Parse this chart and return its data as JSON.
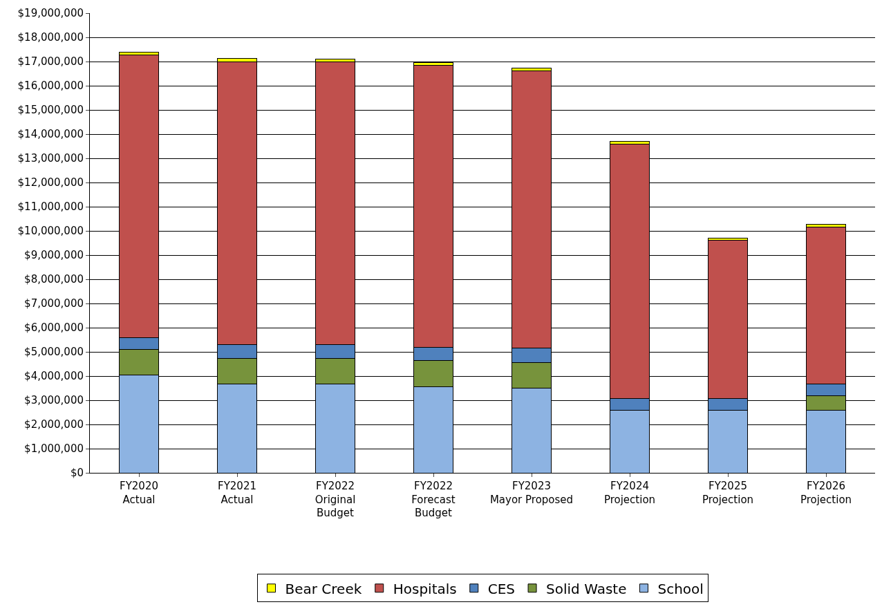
{
  "chart_data": {
    "type": "bar",
    "stacked": true,
    "categories": [
      "FY2020\nActual",
      "FY2021\nActual",
      "FY2022\nOriginal\nBudget",
      "FY2022\nForecast\nBudget",
      "FY2023\nMayor Proposed",
      "FY2024\nProjection",
      "FY2025\nProjection",
      "FY2026\nProjection"
    ],
    "series": [
      {
        "name": "School",
        "color": "#8db3e2",
        "values": [
          4030000,
          3660000,
          3660000,
          3560000,
          3500000,
          2600000,
          2600000,
          2600000
        ]
      },
      {
        "name": "Solid Waste",
        "color": "#77933c",
        "values": [
          1070000,
          1060000,
          1060000,
          1080000,
          1060000,
          0,
          0,
          580000
        ]
      },
      {
        "name": "CES",
        "color": "#4f81bd",
        "values": [
          500000,
          590000,
          590000,
          560000,
          590000,
          480000,
          480000,
          480000
        ]
      },
      {
        "name": "Hospitals",
        "color": "#c0504d",
        "values": [
          11680000,
          11680000,
          11680000,
          11650000,
          11460000,
          10510000,
          6530000,
          6500000
        ]
      },
      {
        "name": "Bear Creek",
        "color": "#ffff00",
        "values": [
          100000,
          130000,
          120000,
          110000,
          110000,
          100000,
          100000,
          110000
        ]
      }
    ],
    "ylim": [
      0,
      19000000
    ],
    "yticks": [
      {
        "value": 0,
        "label": "$0"
      },
      {
        "value": 1000000,
        "label": "$1,000,000"
      },
      {
        "value": 2000000,
        "label": "$2,000,000"
      },
      {
        "value": 3000000,
        "label": "$3,000,000"
      },
      {
        "value": 4000000,
        "label": "$4,000,000"
      },
      {
        "value": 5000000,
        "label": "$5,000,000"
      },
      {
        "value": 6000000,
        "label": "$6,000,000"
      },
      {
        "value": 7000000,
        "label": "$7,000,000"
      },
      {
        "value": 8000000,
        "label": "$8,000,000"
      },
      {
        "value": 9000000,
        "label": "$9,000,000"
      },
      {
        "value": 10000000,
        "label": "$10,000,000"
      },
      {
        "value": 11000000,
        "label": "$11,000,000"
      },
      {
        "value": 12000000,
        "label": "$12,000,000"
      },
      {
        "value": 13000000,
        "label": "$13,000,000"
      },
      {
        "value": 14000000,
        "label": "$14,000,000"
      },
      {
        "value": 15000000,
        "label": "$15,000,000"
      },
      {
        "value": 16000000,
        "label": "$16,000,000"
      },
      {
        "value": 17000000,
        "label": "$17,000,000"
      },
      {
        "value": 18000000,
        "label": "$18,000,000"
      },
      {
        "value": 19000000,
        "label": "$19,000,000"
      }
    ],
    "grid": "y",
    "legend": "bottom"
  }
}
